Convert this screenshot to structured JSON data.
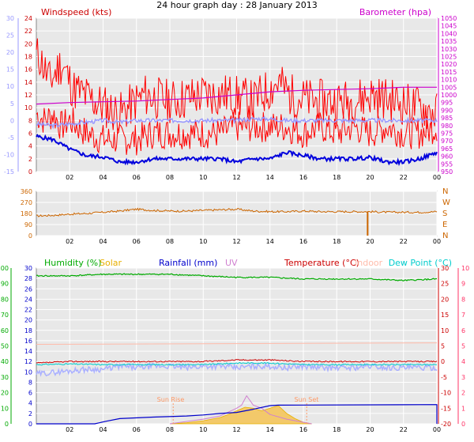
{
  "title": "24 hour graph day : 28 January 2013",
  "colors": {
    "windspeed": "#ff0000",
    "gust": "#ff0000",
    "avg": "#0000dd",
    "temperature_left_axis": "#9999ff",
    "barometer": "#cc00cc",
    "direction": "#cc6600",
    "humidity": "#00aa00",
    "solar": "#e8b000",
    "rainfall": "#0000cc",
    "uv": "#d080d0",
    "temperature": "#cc0000",
    "indoor": "#ffbbaa",
    "dew_point": "#00cccc",
    "wind_temp": "#aab0ff"
  },
  "chart_data": [
    {
      "type": "line",
      "panel": "wind",
      "title": "",
      "labels": {
        "windspeed": "Windspeed (kts)",
        "barometer": "Barometer (hpa)"
      },
      "x_ticks": [
        "02",
        "04",
        "06",
        "08",
        "10",
        "12",
        "14",
        "16",
        "18",
        "20",
        "22",
        "00"
      ],
      "xlim": [
        0,
        24
      ],
      "left_axis_outer": {
        "ticks": [
          "30",
          "25",
          "20",
          "15",
          "10",
          "5",
          "0",
          "-5",
          "-10",
          "-15"
        ],
        "ylim": [
          -15,
          30
        ]
      },
      "left_axis_inner": {
        "ticks": [
          "24",
          "22",
          "20",
          "18",
          "16",
          "14",
          "12",
          "10",
          "8",
          "6",
          "4",
          "2",
          "0"
        ],
        "ylim": [
          0,
          24
        ]
      },
      "right_axis": {
        "ticks": [
          "1050",
          "1045",
          "1040",
          "1035",
          "1030",
          "1025",
          "1020",
          "1015",
          "1010",
          "1005",
          "1000",
          "995",
          "990",
          "985",
          "980",
          "975",
          "970",
          "965",
          "960",
          "955",
          "950"
        ],
        "ylim": [
          950,
          1050
        ]
      },
      "series": [
        {
          "name": "Windspeed",
          "axis": "inner",
          "x": [
            0,
            0.5,
            1,
            1.5,
            2,
            3,
            4,
            5,
            6,
            7,
            8,
            9,
            10,
            11,
            12,
            13,
            14,
            15,
            16,
            17,
            18,
            19,
            20,
            21,
            22,
            23,
            24
          ],
          "y": [
            9,
            8,
            9,
            7,
            8,
            6,
            5,
            5,
            5,
            6,
            6,
            6,
            6,
            6,
            7,
            7,
            7,
            7,
            6,
            7,
            6,
            7,
            6,
            7,
            6,
            6,
            7
          ]
        },
        {
          "name": "Gust",
          "axis": "inner",
          "x": [
            0.2,
            0.8,
            1.5,
            2.2,
            3.5,
            5,
            6.5,
            8,
            10,
            11.5,
            13,
            14.5,
            15.2,
            16.5,
            18,
            19,
            20,
            21.5,
            23,
            24
          ],
          "y": [
            18,
            14,
            17,
            13,
            11,
            9,
            12,
            11,
            12,
            12,
            11,
            14,
            12,
            11,
            11,
            11,
            12,
            11,
            10,
            9
          ]
        },
        {
          "name": "Average",
          "axis": "inner",
          "x": [
            0,
            1,
            2,
            3,
            4,
            5,
            6,
            7,
            8,
            9,
            10,
            11,
            12,
            13,
            14,
            15,
            16,
            17,
            18,
            19,
            20,
            21,
            22,
            23,
            24
          ],
          "y": [
            5.5,
            5,
            3.5,
            2.5,
            2.3,
            1.5,
            1.5,
            2,
            2,
            2,
            2,
            2,
            1.5,
            2,
            2,
            3,
            2.5,
            2,
            2,
            2,
            2.2,
            1.5,
            1.5,
            2,
            3
          ]
        },
        {
          "name": "Temperature",
          "axis": "outer",
          "x": [
            0,
            1,
            2,
            3,
            4,
            5,
            6,
            7,
            8,
            9,
            10,
            11,
            12,
            13,
            14,
            15,
            16,
            17,
            18,
            19,
            20,
            21,
            22,
            23,
            24
          ],
          "y": [
            -1,
            -1.5,
            -1,
            -0.5,
            0,
            -0.5,
            0,
            0,
            0,
            0,
            0,
            0,
            0,
            0.5,
            0.5,
            0,
            0,
            0,
            0,
            0,
            0,
            0,
            0,
            0,
            0
          ]
        },
        {
          "name": "Barometer",
          "axis": "right",
          "x": [
            0,
            2,
            4,
            6,
            8,
            10,
            12,
            14,
            16,
            18,
            20,
            22,
            24
          ],
          "y": [
            994,
            995,
            995.5,
            996,
            997,
            998,
            1000,
            1002,
            1003,
            1003.5,
            1004,
            1005,
            1005
          ]
        }
      ]
    },
    {
      "type": "line",
      "panel": "direction",
      "x_ticks": [
        "02",
        "04",
        "06",
        "08",
        "10",
        "12",
        "14",
        "16",
        "18",
        "20",
        "22",
        "00"
      ],
      "xlim": [
        0,
        24
      ],
      "left_ticks": [
        "360",
        "270",
        "180",
        "90",
        "0"
      ],
      "right_ticks": [
        "N",
        "W",
        "S",
        "E",
        "N"
      ],
      "ylim": [
        0,
        360
      ],
      "series": [
        {
          "name": "Wind Direction",
          "x": [
            0,
            1,
            2,
            3,
            4,
            5,
            6,
            7,
            8,
            9,
            10,
            11,
            12,
            13,
            14,
            15,
            16,
            17,
            18,
            19,
            19.8,
            19.85,
            19.9,
            20,
            21,
            22,
            23,
            24
          ],
          "y": [
            160,
            165,
            175,
            180,
            190,
            200,
            215,
            205,
            200,
            200,
            205,
            210,
            215,
            200,
            195,
            195,
            200,
            195,
            195,
            195,
            195,
            0,
            195,
            195,
            190,
            190,
            190,
            195
          ]
        }
      ]
    },
    {
      "type": "line",
      "panel": "conditions",
      "labels": {
        "humidity": "Humidity (%)",
        "solar": "Solar",
        "rainfall": "Rainfall (mm)",
        "uv": "UV",
        "temperature": "Temperature (°C)",
        "indoor": "Indoor",
        "dew_point": "Dew Point (°C)"
      },
      "annotations": [
        "Sun Rise",
        "Sun Set"
      ],
      "x_ticks": [
        "02",
        "04",
        "06",
        "08",
        "10",
        "12",
        "14",
        "16",
        "18",
        "20",
        "22",
        "00"
      ],
      "xlim": [
        0,
        24
      ],
      "humidity_ticks": [
        "100",
        "90",
        "80",
        "70",
        "60",
        "50",
        "40",
        "30",
        "20",
        "10",
        "0"
      ],
      "rain_ticks": [
        "30",
        "28",
        "26",
        "24",
        "22",
        "20",
        "18",
        "16",
        "14",
        "12",
        "10",
        "8",
        "6",
        "4",
        "2",
        "0"
      ],
      "temp_ticks": [
        "30",
        "25",
        "20",
        "15",
        "10",
        "5",
        "0",
        "-5",
        "-10",
        "-15",
        "-20"
      ],
      "uv_ticks": [
        "10",
        "9",
        "8",
        "7",
        "6",
        "5",
        "4",
        "3",
        "2",
        "1",
        "0"
      ],
      "series": [
        {
          "name": "Humidity",
          "x": [
            0,
            2,
            4,
            6,
            8,
            10,
            12,
            14,
            16,
            18,
            20,
            22,
            24
          ],
          "y": [
            95,
            95,
            96,
            96,
            96,
            95,
            94,
            94,
            93,
            93,
            93,
            92,
            93
          ]
        },
        {
          "name": "Indoor",
          "x": [
            0,
            24
          ],
          "y": [
            5.5,
            6
          ]
        },
        {
          "name": "Temperature",
          "x": [
            0,
            2,
            4,
            6,
            8,
            10,
            12,
            14,
            16,
            18,
            20,
            22,
            24
          ],
          "y": [
            -0.5,
            0,
            0,
            0,
            0,
            0,
            0.5,
            0.5,
            0,
            0,
            0,
            0,
            0
          ]
        },
        {
          "name": "Dew Point",
          "x": [
            0,
            2,
            4,
            6,
            8,
            10,
            12,
            14,
            16,
            18,
            20,
            22,
            24
          ],
          "y": [
            -1,
            -0.8,
            -1,
            -1,
            -1,
            -1,
            -0.5,
            -0.5,
            -1,
            -1,
            -1,
            -1,
            -1
          ]
        },
        {
          "name": "Wind Temp",
          "x": [
            0,
            1,
            2,
            3,
            4,
            5,
            6,
            7,
            8,
            9,
            10,
            11,
            12,
            13,
            14,
            15,
            16,
            17,
            18,
            19,
            20,
            21,
            22,
            23,
            24
          ],
          "y": [
            -4,
            -3.5,
            -3,
            -2.5,
            -2.5,
            -1.5,
            -2,
            -1.5,
            -1.5,
            -2,
            -1.5,
            -1.5,
            -2,
            -1.5,
            -1.5,
            -2,
            -1.5,
            -2,
            -2,
            -2,
            -1.5,
            -2,
            -2,
            -2,
            -2
          ]
        },
        {
          "name": "Rainfall",
          "x": [
            0,
            2,
            3.5,
            4.2,
            5,
            7,
            9,
            10,
            11,
            12,
            13,
            14,
            14.5,
            24,
            24
          ],
          "y": [
            0,
            0,
            0,
            0.5,
            1,
            1.3,
            1.5,
            1.7,
            2,
            2.2,
            2.8,
            3.5,
            3.6,
            3.7,
            0
          ]
        },
        {
          "name": "Solar",
          "x": [
            8,
            9,
            10,
            11,
            11.5,
            12,
            12.5,
            13,
            13.5,
            14,
            14.5,
            15,
            15.5,
            16,
            16.5
          ],
          "y": [
            0,
            0.2,
            0.6,
            1.2,
            1.8,
            2.5,
            3.2,
            3,
            2.5,
            3,
            3.5,
            2,
            1,
            0.3,
            0
          ]
        },
        {
          "name": "UV",
          "x": [
            8,
            10,
            11,
            12,
            12.3,
            12.6,
            13,
            13.5,
            14,
            15,
            16.5
          ],
          "y": [
            0,
            0.3,
            0.5,
            1,
            1.2,
            1.8,
            1.2,
            1,
            0.6,
            0.3,
            0
          ]
        }
      ]
    }
  ]
}
